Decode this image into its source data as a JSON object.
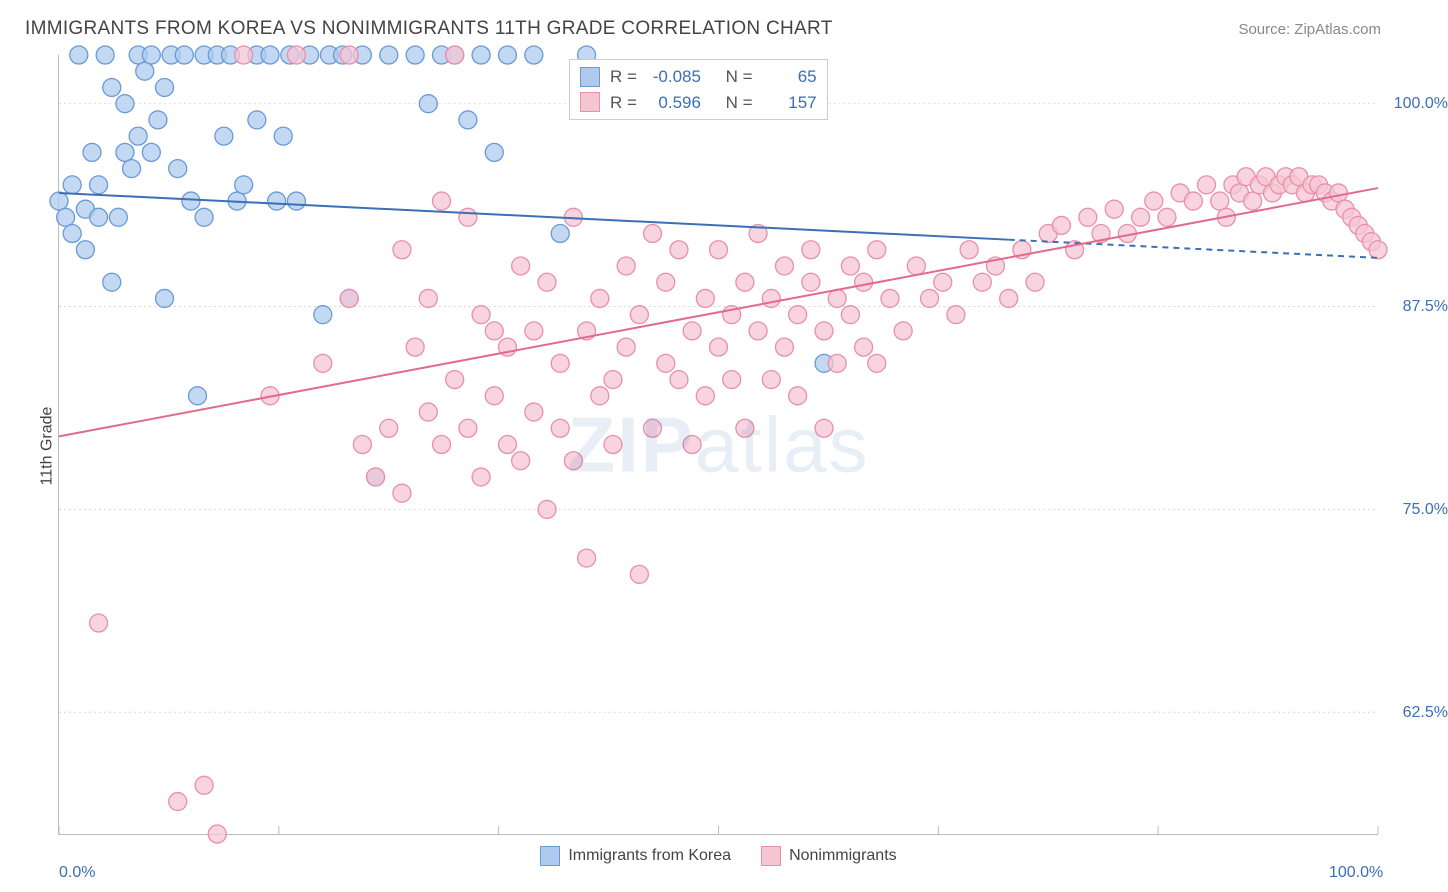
{
  "title": "IMMIGRANTS FROM KOREA VS NONIMMIGRANTS 11TH GRADE CORRELATION CHART",
  "source": "Source: ZipAtlas.com",
  "y_axis_label": "11th Grade",
  "watermark_bold": "ZIP",
  "watermark_light": "atlas",
  "chart": {
    "type": "scatter-with-regression",
    "background_color": "#ffffff",
    "grid_color": "#d8d8d8",
    "grid_dash": "2,3",
    "axis_color": "#bbbbbb",
    "x": {
      "min": 0,
      "max": 100,
      "ticks": [
        0,
        16.67,
        33.33,
        50,
        66.67,
        83.33,
        100
      ],
      "labels_shown": {
        "0": "0.0%",
        "100": "100.0%"
      }
    },
    "y": {
      "min": 55,
      "max": 103,
      "ticks": [
        62.5,
        75.0,
        87.5,
        100.0
      ],
      "tick_labels": [
        "62.5%",
        "75.0%",
        "87.5%",
        "100.0%"
      ]
    },
    "series": [
      {
        "name": "Immigrants from Korea",
        "color_fill": "#aecbef",
        "color_stroke": "#6a9ad4",
        "marker_radius": 9,
        "marker_opacity": 0.75,
        "R": "-0.085",
        "N": "65",
        "regression": {
          "x1": 0,
          "y1": 94.5,
          "x2": 100,
          "y2": 90.5,
          "solid_until_x": 72,
          "color": "#3b6fb6",
          "width": 2
        },
        "points": [
          [
            0,
            94
          ],
          [
            0.5,
            93
          ],
          [
            1,
            95
          ],
          [
            1,
            92
          ],
          [
            1.5,
            103
          ],
          [
            2,
            93.5
          ],
          [
            2,
            91
          ],
          [
            2.5,
            97
          ],
          [
            3,
            95
          ],
          [
            3,
            93
          ],
          [
            3.5,
            103
          ],
          [
            4,
            101
          ],
          [
            4,
            89
          ],
          [
            4.5,
            93
          ],
          [
            5,
            100
          ],
          [
            5,
            97
          ],
          [
            5.5,
            96
          ],
          [
            6,
            103
          ],
          [
            6,
            98
          ],
          [
            6.5,
            102
          ],
          [
            7,
            97
          ],
          [
            7,
            103
          ],
          [
            7.5,
            99
          ],
          [
            8,
            88
          ],
          [
            8,
            101
          ],
          [
            8.5,
            103
          ],
          [
            9,
            96
          ],
          [
            9.5,
            103
          ],
          [
            10,
            94
          ],
          [
            10.5,
            82
          ],
          [
            11,
            93
          ],
          [
            11,
            103
          ],
          [
            12,
            103
          ],
          [
            12.5,
            98
          ],
          [
            13,
            103
          ],
          [
            13.5,
            94
          ],
          [
            14,
            95
          ],
          [
            15,
            103
          ],
          [
            15,
            99
          ],
          [
            16,
            103
          ],
          [
            16.5,
            94
          ],
          [
            17,
            98
          ],
          [
            17.5,
            103
          ],
          [
            18,
            94
          ],
          [
            19,
            103
          ],
          [
            20,
            87
          ],
          [
            20.5,
            103
          ],
          [
            21.5,
            103
          ],
          [
            22,
            88
          ],
          [
            23,
            103
          ],
          [
            24,
            77
          ],
          [
            25,
            103
          ],
          [
            27,
            103
          ],
          [
            28,
            100
          ],
          [
            29,
            103
          ],
          [
            30,
            103
          ],
          [
            31,
            99
          ],
          [
            32,
            103
          ],
          [
            33,
            97
          ],
          [
            34,
            103
          ],
          [
            36,
            103
          ],
          [
            38,
            92
          ],
          [
            40,
            103
          ],
          [
            58,
            84
          ]
        ]
      },
      {
        "name": "Nonimmigrants",
        "color_fill": "#f4c6d4",
        "color_stroke": "#e98fab",
        "marker_radius": 9,
        "marker_opacity": 0.75,
        "R": "0.596",
        "N": "157",
        "regression": {
          "x1": 0,
          "y1": 79.5,
          "x2": 100,
          "y2": 94.8,
          "solid_until_x": 100,
          "color": "#e26a8d",
          "width": 2
        },
        "points": [
          [
            3,
            68
          ],
          [
            9,
            57
          ],
          [
            11,
            58
          ],
          [
            12,
            55
          ],
          [
            14,
            103
          ],
          [
            16,
            82
          ],
          [
            18,
            103
          ],
          [
            20,
            84
          ],
          [
            22,
            88
          ],
          [
            22,
            103
          ],
          [
            23,
            79
          ],
          [
            24,
            77
          ],
          [
            25,
            80
          ],
          [
            26,
            76
          ],
          [
            26,
            91
          ],
          [
            27,
            85
          ],
          [
            28,
            81
          ],
          [
            28,
            88
          ],
          [
            29,
            94
          ],
          [
            29,
            79
          ],
          [
            30,
            83
          ],
          [
            30,
            103
          ],
          [
            31,
            93
          ],
          [
            31,
            80
          ],
          [
            32,
            87
          ],
          [
            32,
            77
          ],
          [
            33,
            86
          ],
          [
            33,
            82
          ],
          [
            34,
            85
          ],
          [
            34,
            79
          ],
          [
            35,
            78
          ],
          [
            35,
            90
          ],
          [
            36,
            86
          ],
          [
            36,
            81
          ],
          [
            37,
            89
          ],
          [
            37,
            75
          ],
          [
            38,
            84
          ],
          [
            38,
            80
          ],
          [
            39,
            93
          ],
          [
            39,
            78
          ],
          [
            40,
            86
          ],
          [
            40,
            72
          ],
          [
            41,
            82
          ],
          [
            41,
            88
          ],
          [
            42,
            83
          ],
          [
            42,
            79
          ],
          [
            43,
            90
          ],
          [
            43,
            85
          ],
          [
            44,
            71
          ],
          [
            44,
            87
          ],
          [
            45,
            92
          ],
          [
            45,
            80
          ],
          [
            46,
            89
          ],
          [
            46,
            84
          ],
          [
            47,
            83
          ],
          [
            47,
            91
          ],
          [
            48,
            86
          ],
          [
            48,
            79
          ],
          [
            49,
            88
          ],
          [
            49,
            82
          ],
          [
            50,
            85
          ],
          [
            50,
            91
          ],
          [
            51,
            83
          ],
          [
            51,
            87
          ],
          [
            52,
            89
          ],
          [
            52,
            80
          ],
          [
            53,
            92
          ],
          [
            53,
            86
          ],
          [
            54,
            88
          ],
          [
            54,
            83
          ],
          [
            55,
            90
          ],
          [
            55,
            85
          ],
          [
            56,
            87
          ],
          [
            56,
            82
          ],
          [
            57,
            89
          ],
          [
            57,
            91
          ],
          [
            58,
            80
          ],
          [
            58,
            86
          ],
          [
            59,
            88
          ],
          [
            59,
            84
          ],
          [
            60,
            90
          ],
          [
            60,
            87
          ],
          [
            61,
            85
          ],
          [
            61,
            89
          ],
          [
            62,
            91
          ],
          [
            62,
            84
          ],
          [
            63,
            88
          ],
          [
            64,
            86
          ],
          [
            65,
            90
          ],
          [
            66,
            88
          ],
          [
            67,
            89
          ],
          [
            68,
            87
          ],
          [
            69,
            91
          ],
          [
            70,
            89
          ],
          [
            71,
            90
          ],
          [
            72,
            88
          ],
          [
            73,
            91
          ],
          [
            74,
            89
          ],
          [
            75,
            92
          ],
          [
            76,
            92.5
          ],
          [
            77,
            91
          ],
          [
            78,
            93
          ],
          [
            79,
            92
          ],
          [
            80,
            93.5
          ],
          [
            81,
            92
          ],
          [
            82,
            93
          ],
          [
            83,
            94
          ],
          [
            84,
            93
          ],
          [
            85,
            94.5
          ],
          [
            86,
            94
          ],
          [
            87,
            95
          ],
          [
            88,
            94
          ],
          [
            88.5,
            93
          ],
          [
            89,
            95
          ],
          [
            89.5,
            94.5
          ],
          [
            90,
            95.5
          ],
          [
            90.5,
            94
          ],
          [
            91,
            95
          ],
          [
            91.5,
            95.5
          ],
          [
            92,
            94.5
          ],
          [
            92.5,
            95
          ],
          [
            93,
            95.5
          ],
          [
            93.5,
            95
          ],
          [
            94,
            95.5
          ],
          [
            94.5,
            94.5
          ],
          [
            95,
            95
          ],
          [
            95.5,
            95
          ],
          [
            96,
            94.5
          ],
          [
            96.5,
            94
          ],
          [
            97,
            94.5
          ],
          [
            97.5,
            93.5
          ],
          [
            98,
            93
          ],
          [
            98.5,
            92.5
          ],
          [
            99,
            92
          ],
          [
            99.5,
            91.5
          ],
          [
            100,
            91
          ]
        ]
      }
    ]
  },
  "bottom_legend": [
    {
      "label": "Immigrants from Korea",
      "fill": "#aecbef",
      "stroke": "#6a9ad4"
    },
    {
      "label": "Nonimmigrants",
      "fill": "#f4c6d4",
      "stroke": "#e98fab"
    }
  ],
  "stats_legend_labels": {
    "R": "R =",
    "N": "N ="
  }
}
